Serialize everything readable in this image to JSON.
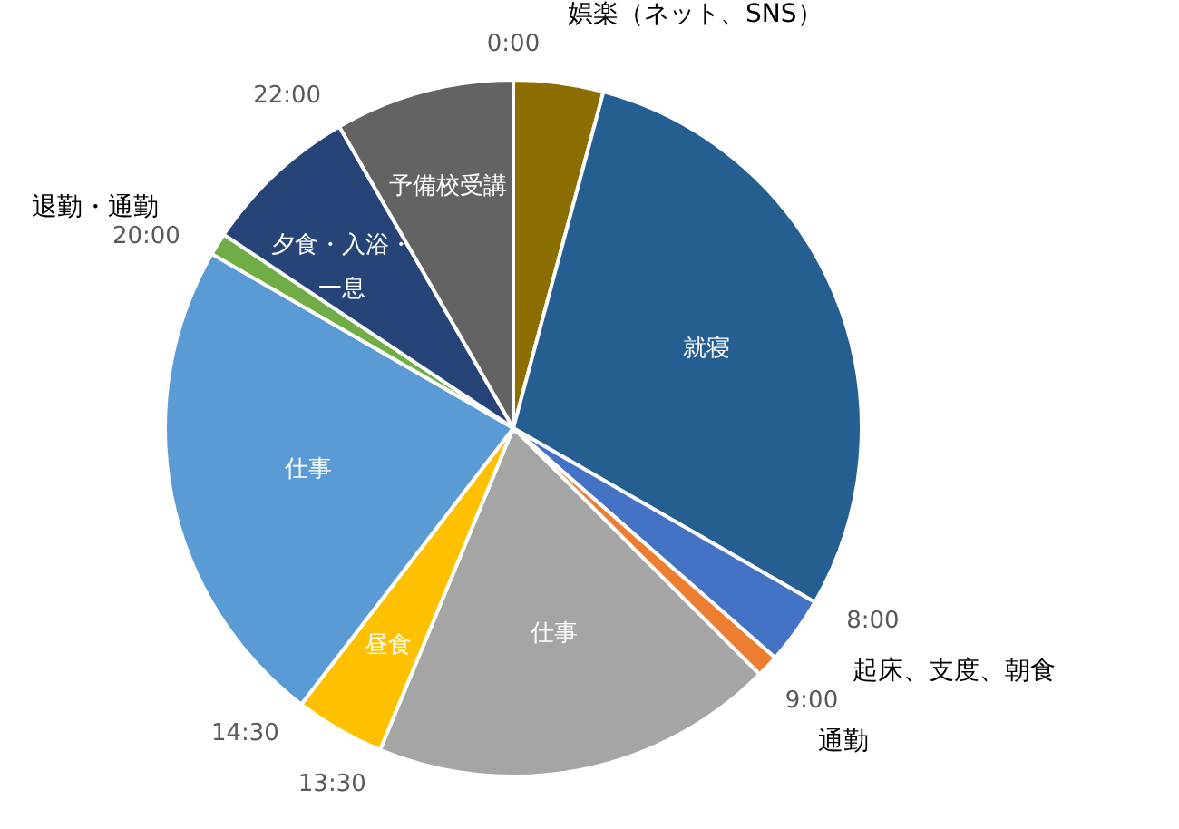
{
  "chart_data": {
    "type": "pie",
    "categories": [
      "娯楽（ネット、SNS）",
      "就寝",
      "起床、支度、朝食",
      "通勤",
      "仕事",
      "昼食",
      "仕事",
      "退勤・通勤",
      "夕食・入浴・一息",
      "予備校受講"
    ],
    "values": [
      4.17,
      29.16,
      3.13,
      1.04,
      18.75,
      4.17,
      22.92,
      1.04,
      7.29,
      8.33
    ],
    "colors": [
      "#8c6d00",
      "#255e91",
      "#4472c4",
      "#ed7d31",
      "#a5a5a5",
      "#ffc000",
      "#5b9bd5",
      "#70ad47",
      "#264478",
      "#636363"
    ],
    "annotations": [
      {
        "text": "0:00",
        "x": "娯楽（ネット、SNS）"
      },
      {
        "text": "8:00",
        "x": "起床、支度、朝食"
      },
      {
        "text": "9:00",
        "x": "仕事"
      },
      {
        "text": "13:30",
        "x": "昼食"
      },
      {
        "text": "14:30",
        "x": "仕事"
      },
      {
        "text": "20:00",
        "x": "退勤・通勤"
      },
      {
        "text": "22:00",
        "x": "予備校受講"
      }
    ],
    "legend": false
  }
}
